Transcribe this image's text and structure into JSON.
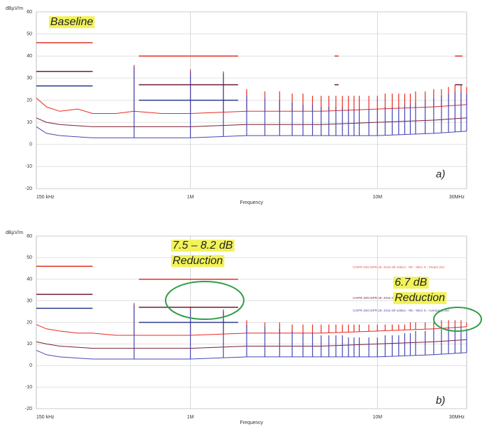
{
  "chart_data": [
    {
      "type": "line",
      "log_x": true,
      "grid": true,
      "y_label": "dBµV/m",
      "x_label": "Frequency",
      "panel_label": "a)",
      "annotations": [
        "Baseline"
      ],
      "xlim": [
        150000,
        30000000
      ],
      "ylim": [
        -20,
        60
      ],
      "xticks": [
        {
          "value": 150000,
          "label": "150 kHz"
        },
        {
          "value": 1000000,
          "label": "1M"
        },
        {
          "value": 10000000,
          "label": "10M"
        },
        {
          "value": 30000000,
          "label": "30MHz"
        }
      ],
      "yticks": [
        60,
        50,
        40,
        30,
        20,
        10,
        0,
        -10,
        -20
      ],
      "limits": [
        {
          "color": "#e03020",
          "x": [
            150000,
            300000
          ],
          "value": 46
        },
        {
          "color": "#6b1a30",
          "x": [
            150000,
            300000
          ],
          "value": 33
        },
        {
          "color": "#2a3a8a",
          "x": [
            150000,
            300000
          ],
          "value": 26.5
        },
        {
          "color": "#e03020",
          "x": [
            530000,
            1800000
          ],
          "value": 40
        },
        {
          "color": "#6b1a30",
          "x": [
            530000,
            1800000
          ],
          "value": 27
        },
        {
          "color": "#2a3a8a",
          "x": [
            530000,
            1800000
          ],
          "value": 20
        },
        {
          "color": "#e03020",
          "x": [
            5900000,
            6200000
          ],
          "value": 40
        },
        {
          "color": "#6b1a30",
          "x": [
            5900000,
            6200000
          ],
          "value": 27
        },
        {
          "color": "#e03020",
          "x": [
            26000000,
            28500000
          ],
          "value": 40
        },
        {
          "color": "#6b1a30",
          "x": [
            26000000,
            28500000
          ],
          "value": 27
        }
      ],
      "series": [
        {
          "color": "#e8281e",
          "x": [
            150000,
            170000,
            200000,
            250000,
            300000,
            400000,
            500000,
            700000,
            1000000,
            2000000,
            5000000,
            10000000,
            20000000,
            30000000
          ],
          "values": [
            21,
            17,
            15,
            16,
            14,
            14,
            15,
            14,
            14,
            15,
            15,
            16,
            17,
            18
          ]
        },
        {
          "color": "#7a1f2e",
          "x": [
            150000,
            170000,
            200000,
            300000,
            500000,
            1000000,
            2000000,
            5000000,
            10000000,
            20000000,
            30000000
          ],
          "values": [
            12,
            10,
            9,
            8,
            8,
            8,
            9,
            9,
            10,
            11,
            12
          ]
        },
        {
          "color": "#4545b5",
          "x": [
            150000,
            170000,
            200000,
            300000,
            500000,
            1000000,
            2000000,
            5000000,
            10000000,
            20000000,
            30000000
          ],
          "values": [
            8,
            5,
            4,
            3,
            3,
            3,
            4,
            4,
            4,
            5,
            6
          ]
        }
      ],
      "harmonics": {
        "x": [
          500000,
          1000000,
          1500000,
          2000000,
          2500000,
          3000000,
          3500000,
          4000000,
          4500000,
          5000000,
          5500000,
          6000000,
          6500000,
          7000000,
          7500000,
          8000000,
          9000000,
          10000000,
          11000000,
          12000000,
          13000000,
          14000000,
          15000000,
          16000000,
          18000000,
          20000000,
          22000000,
          24000000,
          26000000,
          28000000,
          30000000
        ],
        "series": [
          {
            "color": "#e8281e",
            "values": [
              36,
              34,
              33,
              25,
              24,
              24,
              23,
              23,
              22,
              22,
              22,
              22,
              22,
              22,
              22,
              22,
              22,
              22,
              23,
              23,
              23,
              23,
              23,
              24,
              24,
              25,
              25,
              26,
              27,
              27,
              26
            ]
          },
          {
            "color": "#4545b5",
            "values": [
              35,
              33,
              32,
              22,
              21,
              20,
              19,
              18,
              18,
              17,
              17,
              17,
              17,
              16,
              16,
              16,
              16,
              16,
              17,
              17,
              17,
              18,
              18,
              19,
              20,
              21,
              22,
              23,
              24,
              24,
              23
            ]
          }
        ]
      }
    },
    {
      "type": "line",
      "log_x": true,
      "grid": true,
      "y_label": "dBµV/m",
      "x_label": "Frequency",
      "panel_label": "b)",
      "annotations": [
        "7.5 – 8.2 dB",
        "Reduction",
        "6.7 dB",
        "Reduction"
      ],
      "legend_texts": [
        "CISPR 25/CISPR 25- 2016 4th edition - RE - 9kHz S - Peak/1.0m/",
        "CISPR 25/CISPR 25- 2016 4th",
        "CISPR 25/CISPR 25- 2016 4th edition - RE - 9kHz S - Average/1.0m/"
      ],
      "xlim": [
        150000,
        30000000
      ],
      "ylim": [
        -20,
        60
      ],
      "xticks": [
        {
          "value": 150000,
          "label": "150 kHz"
        },
        {
          "value": 1000000,
          "label": "1M"
        },
        {
          "value": 10000000,
          "label": "10M"
        },
        {
          "value": 30000000,
          "label": "30MHz"
        }
      ],
      "yticks": [
        60,
        50,
        40,
        30,
        20,
        10,
        0,
        -10,
        -20
      ],
      "limits": [
        {
          "color": "#e03020",
          "x": [
            150000,
            300000
          ],
          "value": 46
        },
        {
          "color": "#6b1a30",
          "x": [
            150000,
            300000
          ],
          "value": 33
        },
        {
          "color": "#2a3a8a",
          "x": [
            150000,
            300000
          ],
          "value": 26.5
        },
        {
          "color": "#e03020",
          "x": [
            530000,
            1800000
          ],
          "value": 40
        },
        {
          "color": "#6b1a30",
          "x": [
            530000,
            1800000
          ],
          "value": 27
        },
        {
          "color": "#2a3a8a",
          "x": [
            530000,
            1800000
          ],
          "value": 20
        }
      ],
      "series": [
        {
          "color": "#e8281e",
          "x": [
            150000,
            170000,
            200000,
            250000,
            300000,
            400000,
            500000,
            700000,
            1000000,
            2000000,
            5000000,
            10000000,
            20000000,
            30000000
          ],
          "values": [
            19,
            17,
            16,
            15,
            15,
            14,
            14,
            14,
            14,
            15,
            15,
            16,
            17,
            18
          ]
        },
        {
          "color": "#7a1f2e",
          "x": [
            150000,
            170000,
            200000,
            300000,
            500000,
            1000000,
            2000000,
            5000000,
            10000000,
            20000000,
            30000000
          ],
          "values": [
            11,
            10,
            9,
            8,
            8,
            8,
            9,
            9,
            10,
            11,
            12
          ]
        },
        {
          "color": "#4545b5",
          "x": [
            150000,
            170000,
            200000,
            300000,
            500000,
            1000000,
            2000000,
            5000000,
            10000000,
            20000000,
            30000000
          ],
          "values": [
            7,
            5,
            4,
            3,
            3,
            3,
            4,
            4,
            4,
            5,
            6
          ]
        }
      ],
      "harmonics": {
        "x": [
          500000,
          1000000,
          1500000,
          2000000,
          2500000,
          3000000,
          3500000,
          4000000,
          4500000,
          5000000,
          5500000,
          6000000,
          6500000,
          7000000,
          7500000,
          8000000,
          9000000,
          10000000,
          11000000,
          12000000,
          13000000,
          14000000,
          15000000,
          16000000,
          18000000,
          20000000,
          22000000,
          24000000,
          26000000,
          28000000,
          30000000
        ],
        "series": [
          {
            "color": "#e8281e",
            "values": [
              29,
              27,
              26,
              21,
              20,
              20,
              19,
              19,
              19,
              19,
              19,
              19,
              19,
              19,
              19,
              19,
              19,
              19,
              19,
              19,
              19,
              19,
              20,
              20,
              20,
              20,
              21,
              21,
              21,
              21,
              20
            ]
          },
          {
            "color": "#4545b5",
            "values": [
              28,
              26,
              25,
              19,
              18,
              17,
              16,
              15,
              15,
              14,
              14,
              14,
              14,
              13,
              13,
              13,
              13,
              13,
              14,
              14,
              14,
              15,
              15,
              16,
              16,
              17,
              17,
              18,
              18,
              18,
              17
            ]
          }
        ]
      }
    }
  ]
}
